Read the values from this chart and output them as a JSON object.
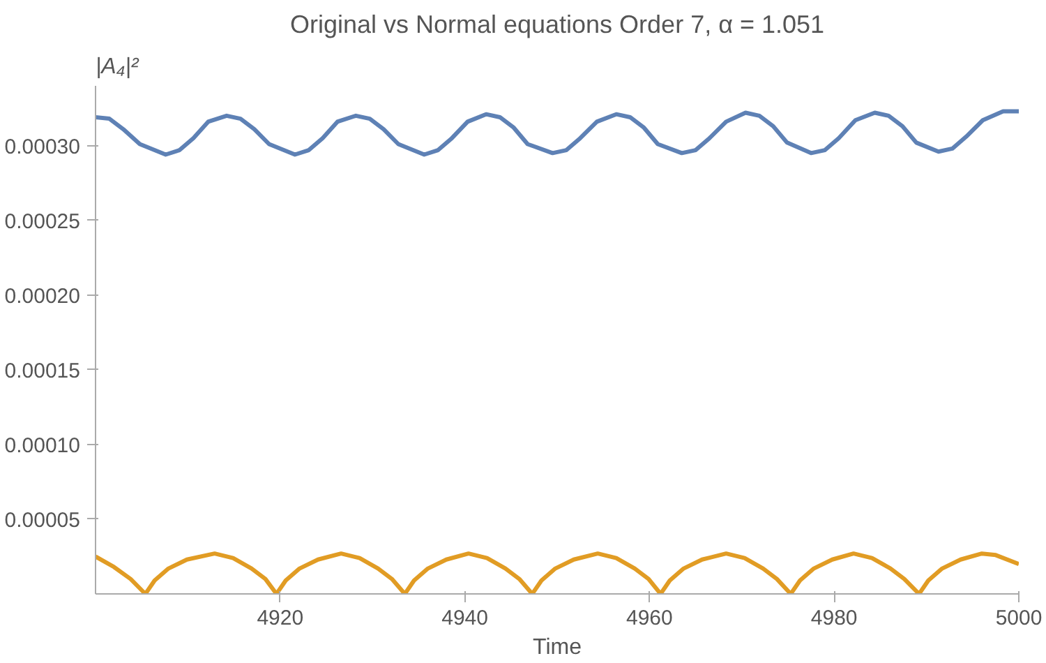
{
  "chart_data": {
    "type": "line",
    "title": "Original vs Normal equations Order 7, α = 1.051",
    "xlabel": "Time",
    "ylabel": "|A₄|²",
    "xlim": [
      4900,
      5000
    ],
    "xticks": [
      4920,
      4940,
      4960,
      4980,
      5000
    ],
    "ylim": [
      0,
      0.00034
    ],
    "yticks": [
      {
        "value": 5e-05,
        "label": "0.00005"
      },
      {
        "value": 0.0001,
        "label": "0.00010"
      },
      {
        "value": 0.00015,
        "label": "0.00015"
      },
      {
        "value": 0.0002,
        "label": "0.00020"
      },
      {
        "value": 0.00025,
        "label": "0.00025"
      },
      {
        "value": 0.0003,
        "label": "0.00030"
      }
    ],
    "grid": false,
    "series": [
      {
        "color": "#5e81b5",
        "x": [
          4900,
          4901.5,
          4903,
          4904.8,
          4907.6,
          4909.1,
          4910.6,
          4912.2,
          4914.2,
          4915.7,
          4917.2,
          4918.8,
          4921.6,
          4923.1,
          4924.6,
          4926.2,
          4928.2,
          4929.7,
          4931.2,
          4932.8,
          4935.6,
          4937.1,
          4938.6,
          4940.3,
          4942.3,
          4943.8,
          4945.3,
          4946.8,
          4949.5,
          4951,
          4952.5,
          4954.3,
          4956.4,
          4957.9,
          4959.4,
          4960.9,
          4963.5,
          4965,
          4966.5,
          4968.3,
          4970.4,
          4971.9,
          4973.4,
          4974.9,
          4977.5,
          4979,
          4980.5,
          4982.3,
          4984.4,
          4985.9,
          4987.4,
          4988.9,
          4991.3,
          4992.8,
          4994.3,
          4996.1,
          4998.3,
          5000
        ],
        "values": [
          0.000319,
          0.000318,
          0.000311,
          0.000301,
          0.000294,
          0.000297,
          0.000305,
          0.000316,
          0.00032,
          0.000318,
          0.000311,
          0.000301,
          0.000294,
          0.000297,
          0.000305,
          0.000316,
          0.00032,
          0.000318,
          0.000311,
          0.000301,
          0.000294,
          0.000297,
          0.000305,
          0.000316,
          0.000321,
          0.000319,
          0.000312,
          0.000301,
          0.000295,
          0.000297,
          0.000305,
          0.000316,
          0.000321,
          0.000319,
          0.000312,
          0.000301,
          0.000295,
          0.000297,
          0.000305,
          0.000316,
          0.000322,
          0.00032,
          0.000313,
          0.000302,
          0.000295,
          0.000297,
          0.000305,
          0.000317,
          0.000322,
          0.00032,
          0.000313,
          0.000302,
          0.000296,
          0.000298,
          0.000306,
          0.000317,
          0.000323,
          0.000323
        ]
      },
      {
        "color": "#e19c24",
        "x": [
          4900,
          4902,
          4903.8,
          4905.4,
          4906.4,
          4907.9,
          4909.9,
          4912.9,
          4914.9,
          4916.9,
          4918.4,
          4919.6,
          4920.6,
          4922.1,
          4924.1,
          4926.6,
          4928.6,
          4930.6,
          4932.1,
          4933.5,
          4934.5,
          4936,
          4938,
          4940.4,
          4942.4,
          4944.4,
          4945.9,
          4947.3,
          4948.3,
          4949.8,
          4951.8,
          4954.4,
          4956.4,
          4958.4,
          4959.9,
          4961.2,
          4962.2,
          4963.7,
          4965.7,
          4968.3,
          4970.3,
          4972.3,
          4973.8,
          4975.3,
          4976.3,
          4977.8,
          4979.8,
          4982.1,
          4984.1,
          4986.1,
          4987.6,
          4989.2,
          4990.2,
          4991.7,
          4993.7,
          4996,
          4997.5,
          5000
        ],
        "values": [
          2.5e-05,
          1.8e-05,
          1e-05,
          0,
          9e-06,
          1.7e-05,
          2.3e-05,
          2.7e-05,
          2.4e-05,
          1.7e-05,
          1e-05,
          0,
          9e-06,
          1.7e-05,
          2.3e-05,
          2.7e-05,
          2.4e-05,
          1.7e-05,
          1e-05,
          0,
          9e-06,
          1.7e-05,
          2.3e-05,
          2.7e-05,
          2.4e-05,
          1.7e-05,
          1e-05,
          0,
          9e-06,
          1.7e-05,
          2.3e-05,
          2.7e-05,
          2.4e-05,
          1.7e-05,
          1e-05,
          0,
          9e-06,
          1.7e-05,
          2.3e-05,
          2.7e-05,
          2.4e-05,
          1.7e-05,
          1e-05,
          0,
          9e-06,
          1.7e-05,
          2.3e-05,
          2.7e-05,
          2.4e-05,
          1.7e-05,
          1e-05,
          0,
          9e-06,
          1.7e-05,
          2.3e-05,
          2.7e-05,
          2.6e-05,
          2e-05
        ]
      }
    ]
  }
}
